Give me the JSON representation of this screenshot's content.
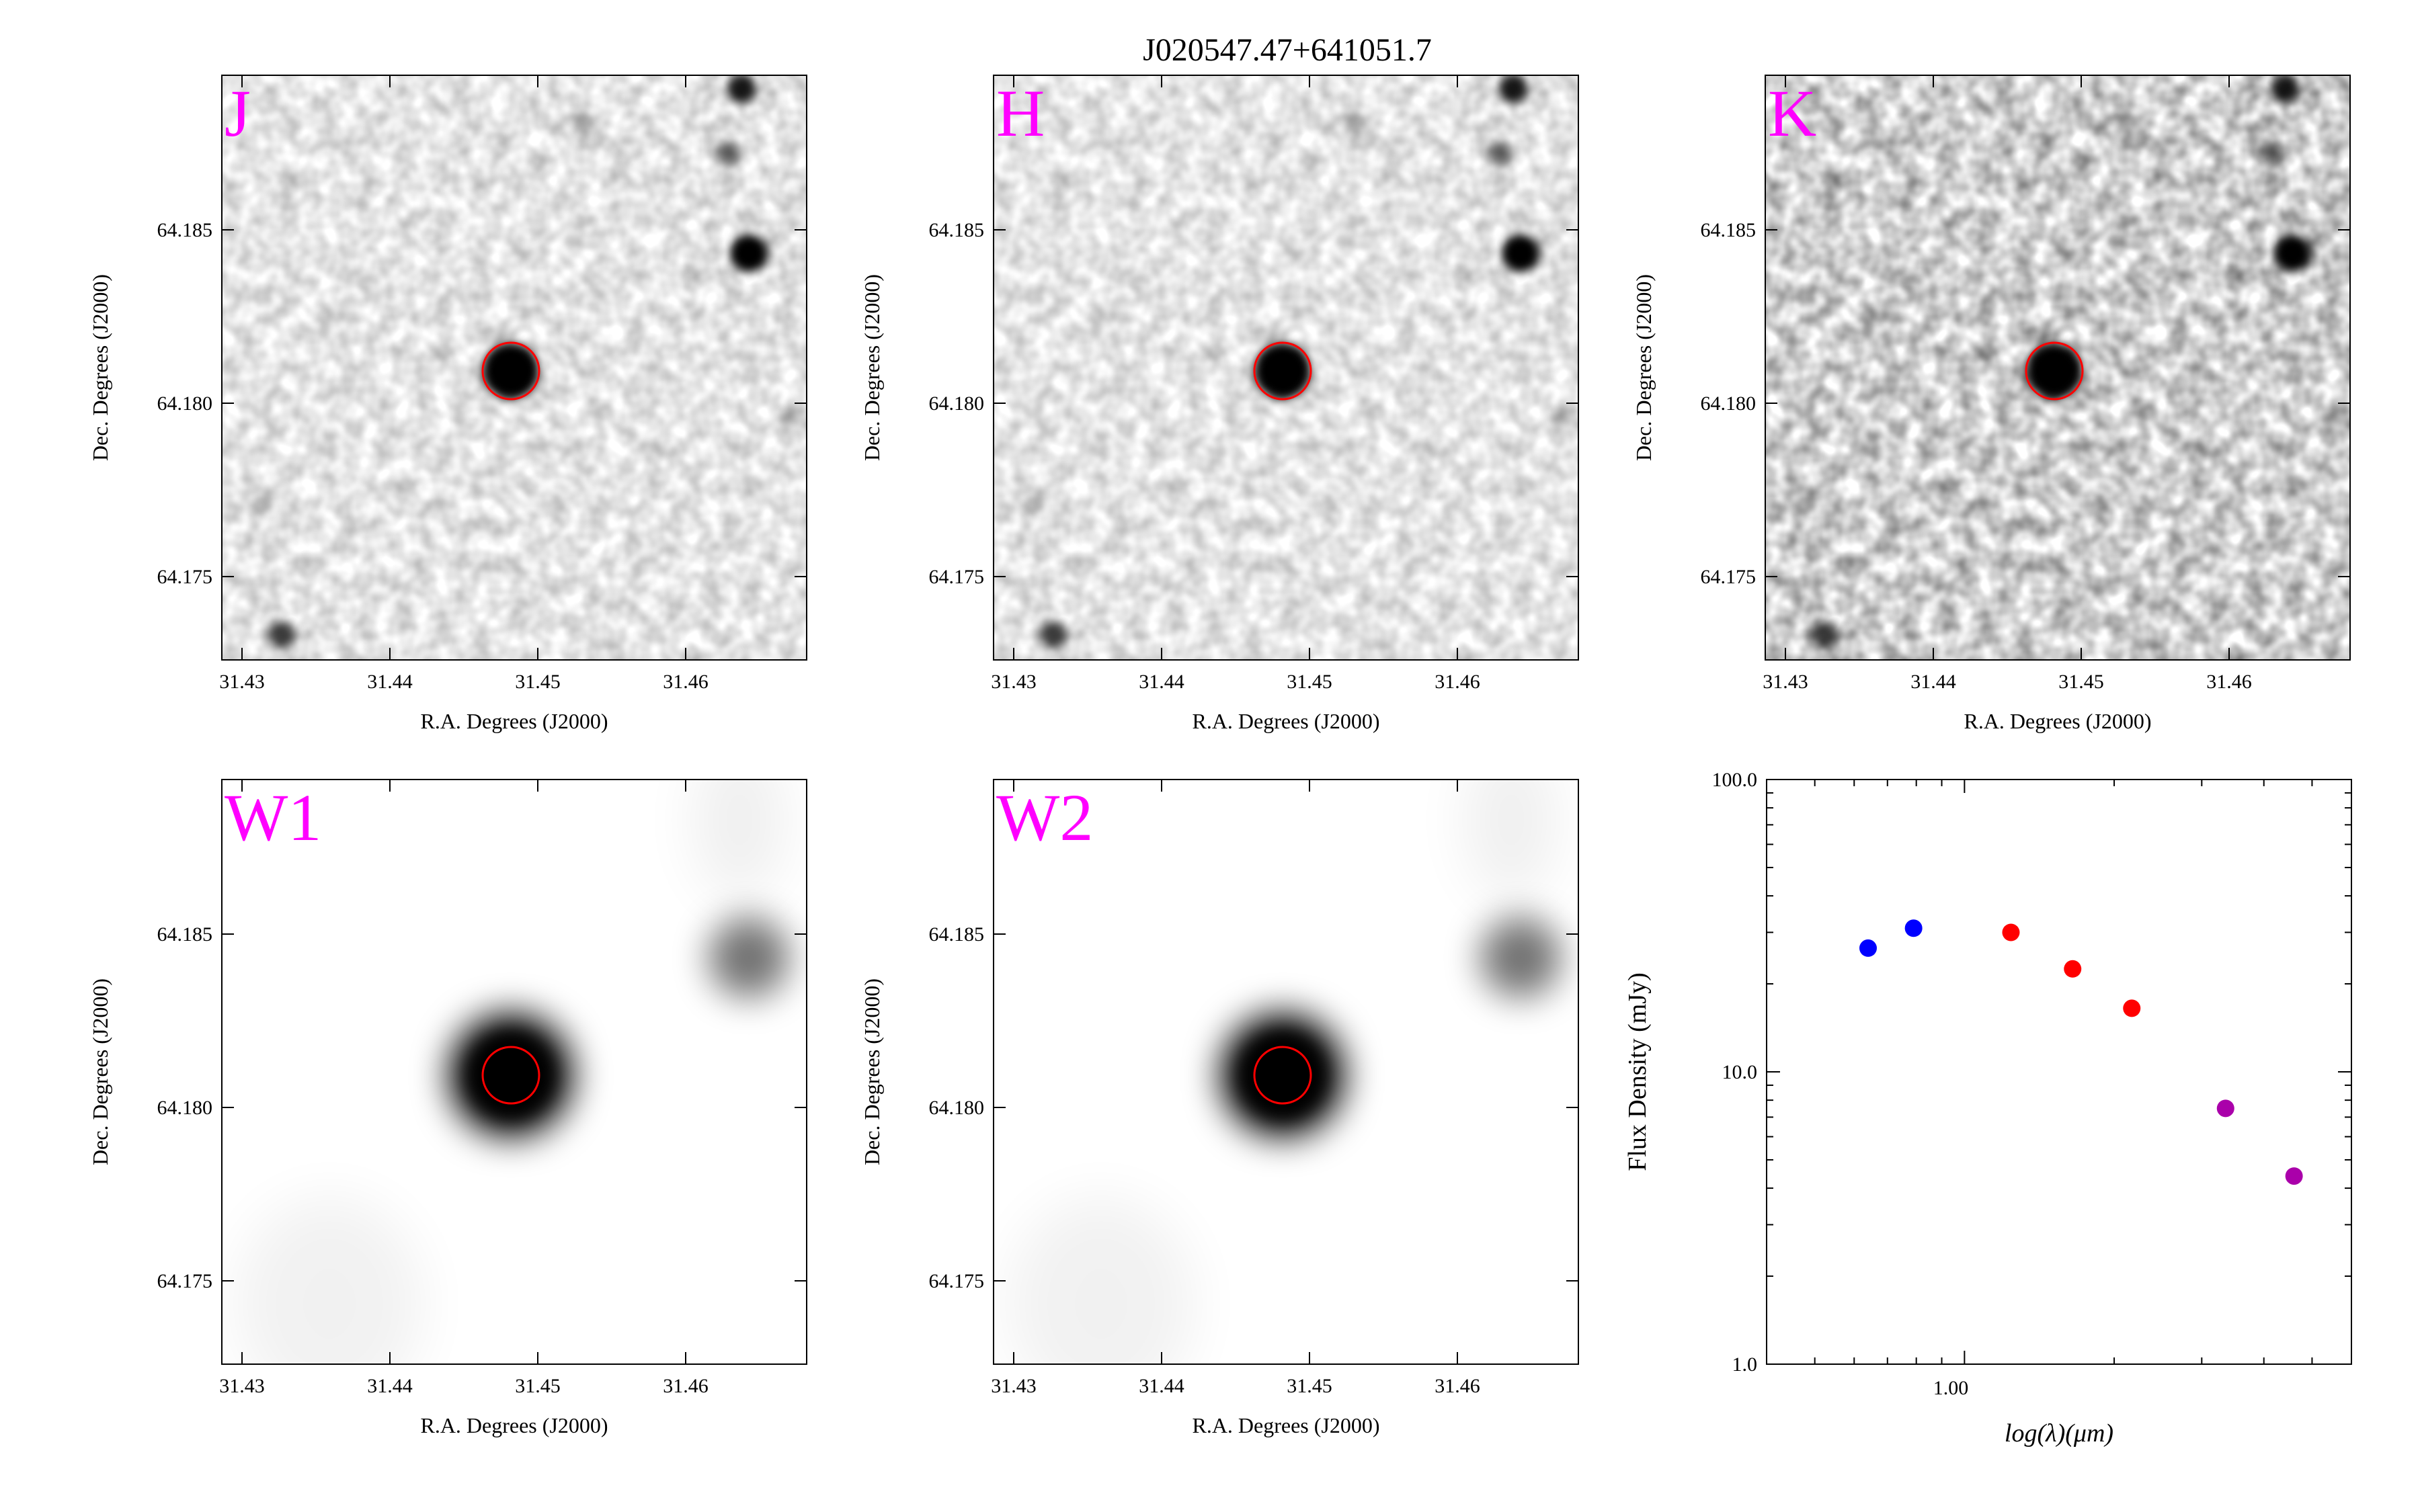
{
  "figure": {
    "title": "J020547.47+641051.7"
  },
  "colors": {
    "band_label": "#ff00ff",
    "aperture": "#ff0000",
    "sed_optical": "#0000ff",
    "sed_2mass": "#ff0000",
    "sed_wise": "#aa00aa"
  },
  "image_panels": [
    {
      "band": "J",
      "xlabel": "R.A. Degrees (J2000)",
      "ylabel": "Dec. Degrees (J2000)"
    },
    {
      "band": "H",
      "xlabel": "R.A. Degrees (J2000)",
      "ylabel": "Dec. Degrees (J2000)"
    },
    {
      "band": "K",
      "xlabel": "R.A. Degrees (J2000)",
      "ylabel": "Dec. Degrees (J2000)"
    },
    {
      "band": "W1",
      "xlabel": "R.A. Degrees (J2000)",
      "ylabel": "Dec. Degrees (J2000)"
    },
    {
      "band": "W2",
      "xlabel": "R.A. Degrees (J2000)",
      "ylabel": "Dec. Degrees (J2000)"
    }
  ],
  "image_axes": {
    "ra_ticks": [
      "31.43",
      "31.44",
      "31.45",
      "31.46"
    ],
    "dec_ticks": [
      "64.185",
      "64.180",
      "64.175"
    ]
  },
  "chart_data": {
    "type": "scatter",
    "title": "",
    "xlabel": "log(λ)(μm)",
    "ylabel": "Flux Density (mJy)",
    "xscale": "log",
    "yscale": "log",
    "xlim": [
      0.4,
      6.0
    ],
    "ylim": [
      1.0,
      100.0
    ],
    "x_tick_labels": [
      "1.00"
    ],
    "y_tick_labels": [
      "100.0",
      "10.0",
      "1.0"
    ],
    "grid": false,
    "series": [
      {
        "color": "#0000ff",
        "x": [
          0.64,
          0.79
        ],
        "y": [
          26.5,
          31.0
        ]
      },
      {
        "color": "#ff0000",
        "x": [
          1.24,
          1.65,
          2.17
        ],
        "y": [
          30.0,
          22.5,
          16.5
        ]
      },
      {
        "color": "#aa00aa",
        "x": [
          3.35,
          4.6
        ],
        "y": [
          7.5,
          4.4
        ]
      }
    ]
  }
}
